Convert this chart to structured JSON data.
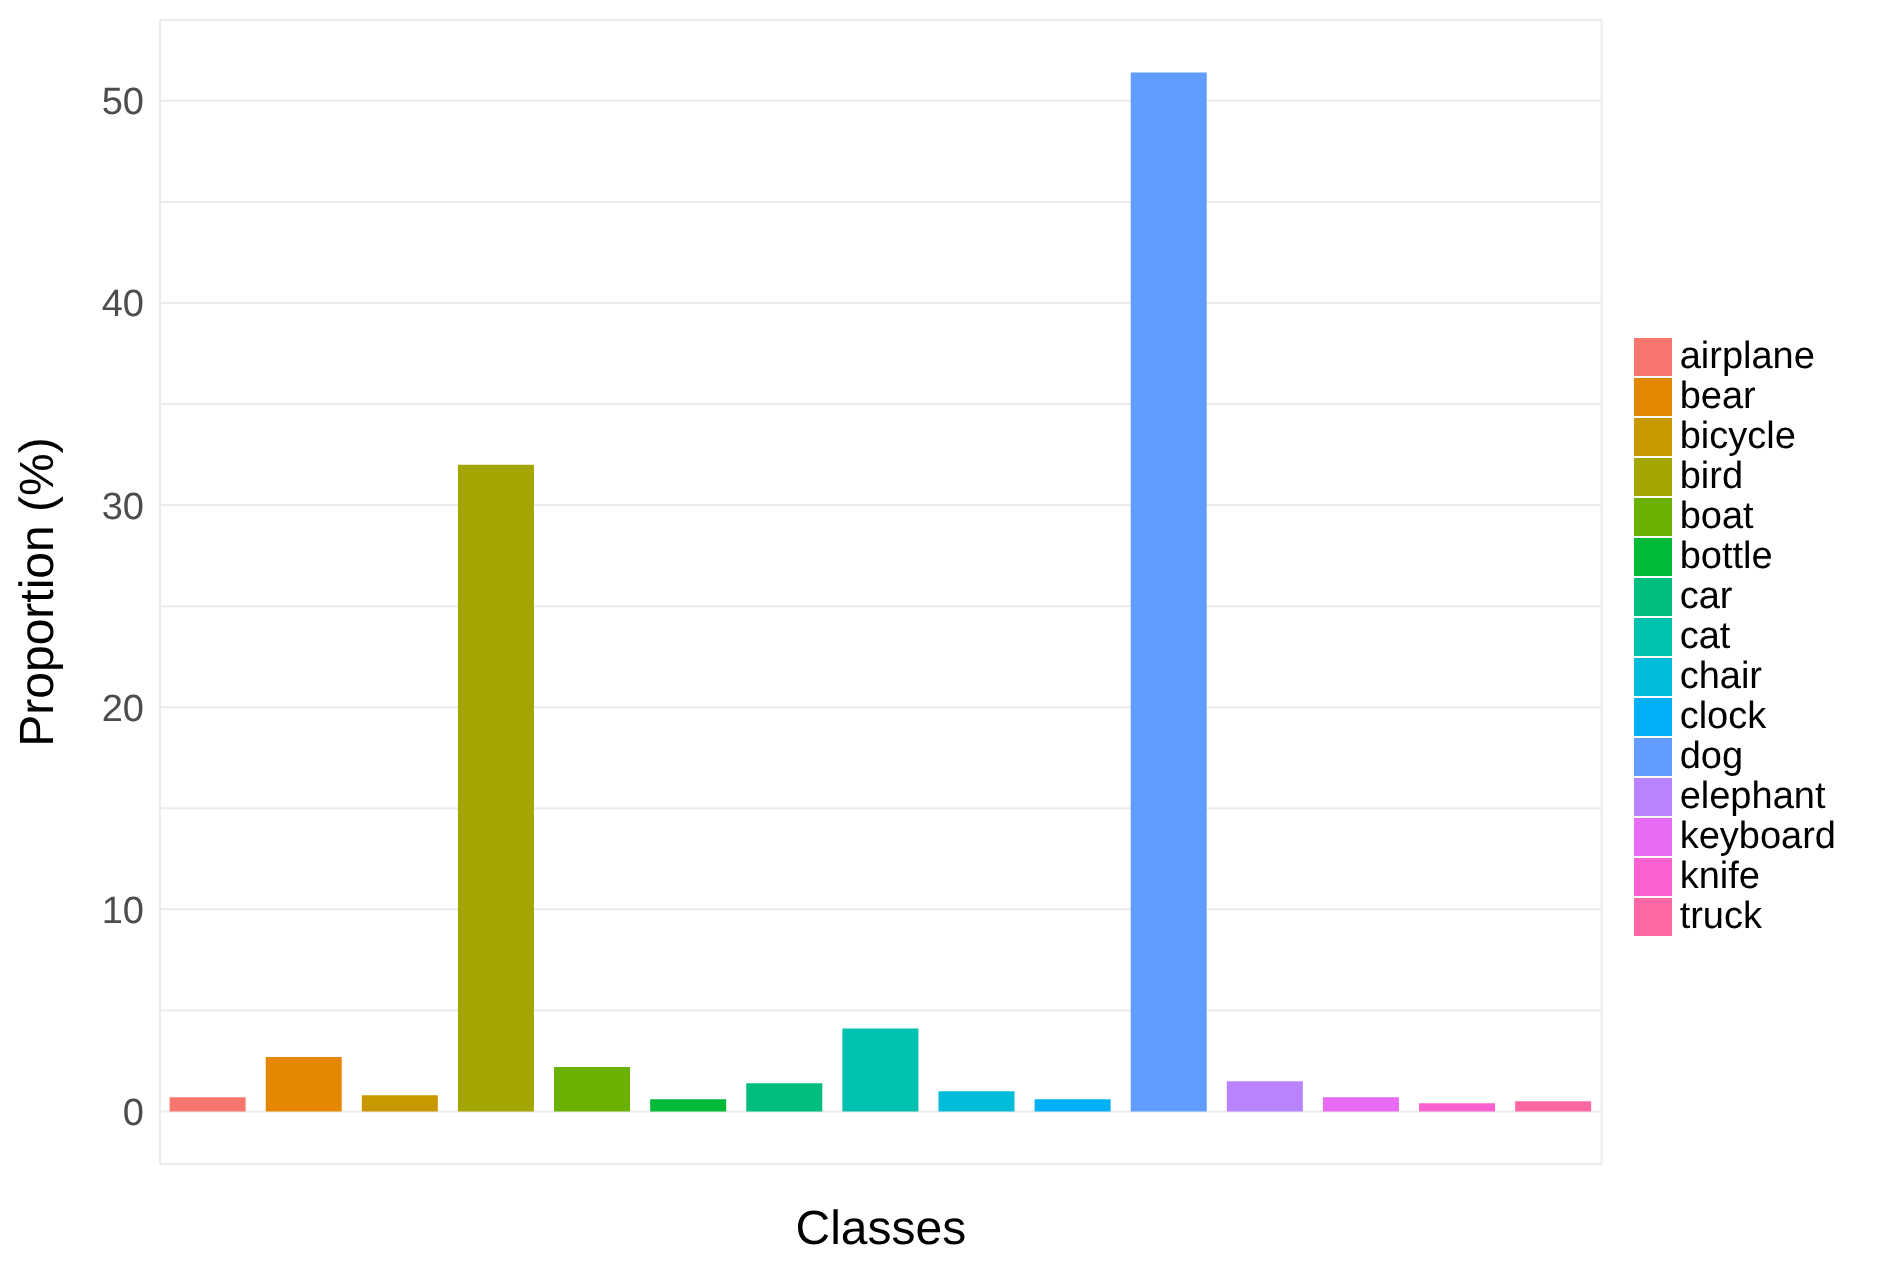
{
  "chart_data": {
    "type": "bar",
    "xlabel": "Classes",
    "ylabel": "Proportion (%)",
    "stacked": true,
    "categories": [
      null,
      null,
      null,
      null,
      null,
      null,
      null,
      null,
      null,
      null,
      null,
      null,
      null,
      null,
      null
    ],
    "series": [
      {
        "name": "airplane",
        "color": "#f8766d",
        "values": [
          0.7,
          null,
          null,
          null,
          null,
          null,
          null,
          null,
          null,
          null,
          null,
          null,
          null,
          null,
          null
        ]
      },
      {
        "name": "bear",
        "color": "#e58700",
        "values": [
          null,
          2.7,
          null,
          null,
          null,
          null,
          null,
          null,
          null,
          null,
          null,
          null,
          null,
          null,
          null
        ]
      },
      {
        "name": "bicycle",
        "color": "#c99800",
        "values": [
          null,
          null,
          0.8,
          null,
          null,
          null,
          null,
          null,
          null,
          null,
          null,
          null,
          null,
          null,
          null
        ]
      },
      {
        "name": "bird",
        "color": "#a3a500",
        "values": [
          null,
          null,
          null,
          32,
          null,
          null,
          null,
          null,
          null,
          null,
          null,
          null,
          null,
          null,
          null
        ]
      },
      {
        "name": "boat",
        "color": "#6bb100",
        "values": [
          null,
          null,
          null,
          null,
          2.2,
          null,
          null,
          null,
          null,
          null,
          null,
          null,
          null,
          null,
          null
        ]
      },
      {
        "name": "bottle",
        "color": "#00ba38",
        "values": [
          null,
          null,
          null,
          null,
          null,
          0.6,
          null,
          null,
          null,
          null,
          null,
          null,
          null,
          null,
          null
        ]
      },
      {
        "name": "car",
        "color": "#00bf7d",
        "values": [
          null,
          null,
          null,
          null,
          null,
          null,
          1.4,
          null,
          null,
          null,
          null,
          null,
          null,
          null,
          null
        ]
      },
      {
        "name": "cat",
        "color": "#00c0af",
        "values": [
          null,
          null,
          null,
          null,
          null,
          null,
          null,
          4.1,
          null,
          null,
          null,
          null,
          null,
          null,
          null
        ]
      },
      {
        "name": "chair",
        "color": "#00bcd8",
        "values": [
          null,
          null,
          null,
          null,
          null,
          null,
          null,
          null,
          1.0,
          null,
          null,
          null,
          null,
          null,
          null
        ]
      },
      {
        "name": "clock",
        "color": "#00b0f6",
        "values": [
          null,
          null,
          null,
          null,
          null,
          null,
          null,
          null,
          null,
          0.6,
          null,
          null,
          null,
          null,
          null
        ]
      },
      {
        "name": "dog",
        "color": "#619cff",
        "values": [
          null,
          null,
          null,
          null,
          null,
          null,
          null,
          null,
          null,
          null,
          51.4,
          null,
          null,
          null,
          null
        ]
      },
      {
        "name": "elephant",
        "color": "#b983ff",
        "values": [
          null,
          null,
          null,
          null,
          null,
          null,
          null,
          null,
          null,
          null,
          null,
          1.5,
          null,
          null,
          null
        ]
      },
      {
        "name": "keyboard",
        "color": "#e76bf3",
        "values": [
          null,
          null,
          null,
          null,
          null,
          null,
          null,
          null,
          null,
          null,
          null,
          null,
          0.7,
          null,
          null
        ]
      },
      {
        "name": "knife",
        "color": "#fd61d1",
        "values": [
          null,
          null,
          null,
          null,
          null,
          null,
          null,
          null,
          null,
          null,
          null,
          null,
          null,
          0.4,
          null
        ]
      },
      {
        "name": "truck",
        "color": "#ff67a4",
        "values": [
          null,
          null,
          null,
          null,
          null,
          null,
          null,
          null,
          null,
          null,
          null,
          null,
          null,
          null,
          0.5
        ]
      }
    ],
    "ylim": [
      -2.6,
      54
    ],
    "yticks": [
      0,
      {
        "value": 5,
        "label": null
      },
      10,
      {
        "value": 15,
        "label": null
      },
      20,
      {
        "value": 25,
        "label": null
      },
      30,
      {
        "value": 35,
        "label": null
      },
      40,
      {
        "value": 45,
        "label": null
      },
      50
    ],
    "grid": true,
    "legend": "right",
    "tick_labels": "y"
  }
}
